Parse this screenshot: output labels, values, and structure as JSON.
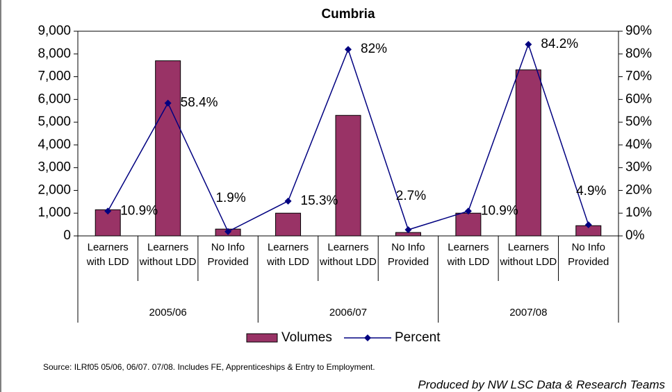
{
  "chart_data": {
    "type": "bar-line",
    "title": "Cumbria",
    "categories": [
      "Learners with LDD",
      "Learners without LDD",
      "No Info Provided",
      "Learners with LDD",
      "Learners without LDD",
      "No Info Provided",
      "Learners with LDD",
      "Learners without LDD",
      "No Info Provided"
    ],
    "groups": [
      "2005/06",
      "2006/07",
      "2007/08"
    ],
    "series": [
      {
        "name": "Volumes",
        "type": "bar",
        "color": "#993366",
        "values": [
          1150,
          7700,
          300,
          1000,
          5300,
          150,
          1000,
          7300,
          450
        ]
      },
      {
        "name": "Percent",
        "type": "line",
        "axis": "y2",
        "color": "#000080",
        "values": [
          10.9,
          58.4,
          1.9,
          15.3,
          82,
          2.7,
          10.9,
          84.2,
          4.9
        ],
        "value_labels": [
          "10.9%",
          "58.4%",
          "1.9%",
          "15.3%",
          "82%",
          "2.7%",
          "10.9%",
          "84.2%",
          "4.9%"
        ]
      }
    ],
    "ylim": [
      0,
      9000
    ],
    "yticks": [
      0,
      {
        "value": 1000,
        "label": "1,000"
      },
      {
        "value": 2000,
        "label": "2,000"
      },
      {
        "value": 3000,
        "label": "3,000"
      },
      {
        "value": 4000,
        "label": "4,000"
      },
      {
        "value": 5000,
        "label": "5,000"
      },
      {
        "value": 6000,
        "label": "6,000"
      },
      {
        "value": 7000,
        "label": "7,000"
      },
      {
        "value": 8000,
        "label": "8,000"
      },
      {
        "value": 9000,
        "label": "9,000"
      }
    ],
    "y2lim": [
      0,
      90
    ],
    "y2ticks": [
      {
        "value": 0,
        "label": "0%"
      },
      {
        "value": 10,
        "label": "10%"
      },
      {
        "value": 20,
        "label": "20%"
      },
      {
        "value": 30,
        "label": "30%"
      },
      {
        "value": 40,
        "label": "40%"
      },
      {
        "value": 50,
        "label": "50%"
      },
      {
        "value": 60,
        "label": "60%"
      },
      {
        "value": 70,
        "label": "70%"
      },
      {
        "value": 80,
        "label": "80%"
      },
      {
        "value": 90,
        "label": "90%"
      }
    ],
    "grid": false,
    "legend": "bottom",
    "source": "Source: ILRf05 05/06, 06/07. 07/08. Includes FE, Apprenticeships & Entry to Employment.",
    "credit": "Produced by NW LSC Data & Research Teams"
  }
}
